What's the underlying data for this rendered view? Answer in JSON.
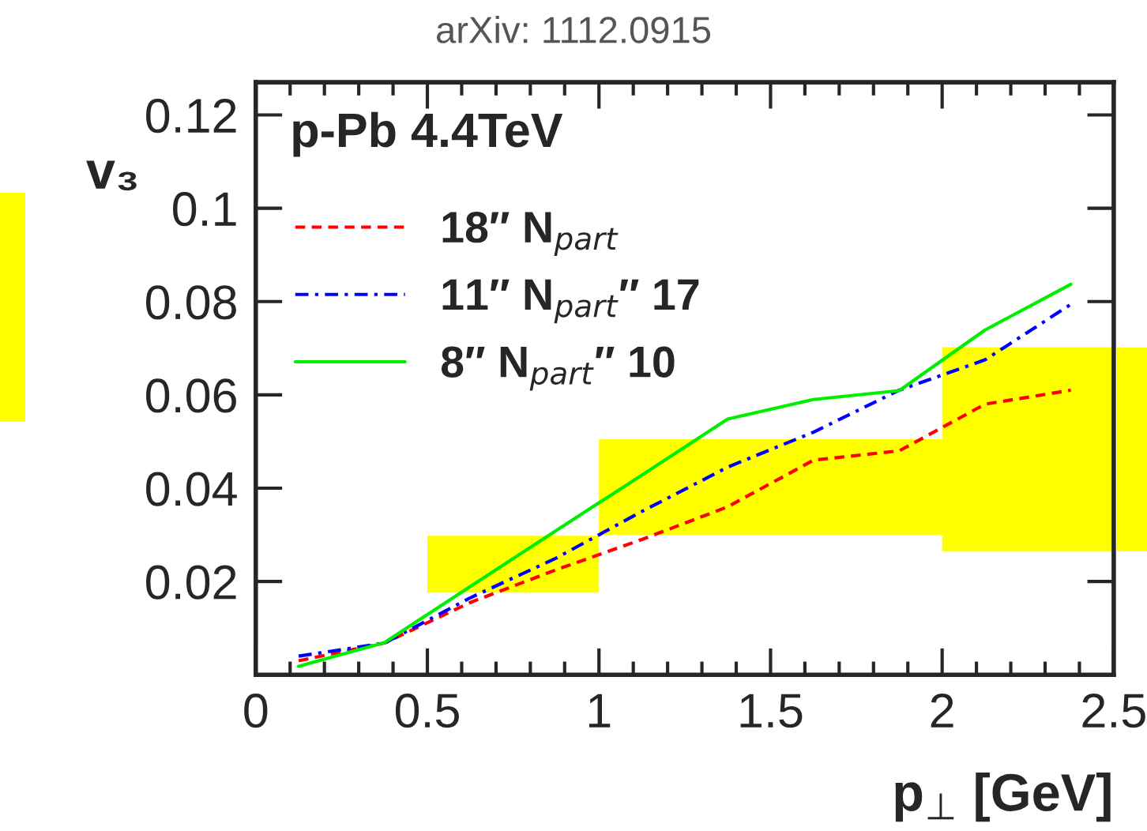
{
  "chart_data": {
    "type": "line",
    "title": "p-Pb 4.4TeV",
    "xlabel": "p$_{⊥}$ [GeV]",
    "ylabel": "v₃",
    "annotations": [
      "arXiv: 1112.0915"
    ],
    "xlim": [
      0,
      2.5
    ],
    "ylim": [
      0,
      0.127
    ],
    "xticks": [
      0,
      0.5,
      1,
      1.5,
      2,
      2.5
    ],
    "yticks": [
      0.02,
      0.04,
      0.06,
      0.08,
      0.1,
      0.12
    ],
    "legend": "top left",
    "grid": false,
    "marker": "none",
    "series": [
      {
        "type": "area",
        "color": "#ffff00",
        "x": [
          0.5,
          1.0,
          1.0,
          2.0,
          2.0,
          2.5
        ],
        "lower": [
          0.0176,
          0.0176,
          0.03,
          0.03,
          0.0264,
          0.0264
        ],
        "upper": [
          0.0298,
          0.0298,
          0.0505,
          0.0505,
          0.0702,
          0.0702
        ],
        "values": [
          null,
          null,
          null,
          null,
          null,
          null
        ]
      },
      {
        "name": "18″ N$_{part}$",
        "color": "#ff0000",
        "line_style": "dashed",
        "x": [
          0.125,
          0.375,
          0.625,
          0.875,
          1.125,
          1.375,
          1.625,
          1.875,
          2.125,
          2.375
        ],
        "values": [
          0.003,
          0.0068,
          0.0155,
          0.0225,
          0.029,
          0.036,
          0.046,
          0.048,
          0.058,
          0.061
        ]
      },
      {
        "name": "11″ N$_{part}$″ 17",
        "color": "#0000ff",
        "line_style": "dashdot",
        "x": [
          0.125,
          0.375,
          0.625,
          0.875,
          1.125,
          1.375,
          1.625,
          1.875,
          2.125,
          2.375
        ],
        "values": [
          0.004,
          0.0068,
          0.0165,
          0.025,
          0.035,
          0.0445,
          0.052,
          0.061,
          0.0675,
          0.0794
        ]
      },
      {
        "name": "8″ N$_{part}$″ 10",
        "color": "#00ee00",
        "line_style": "solid",
        "x": [
          0.125,
          0.375,
          0.625,
          0.875,
          1.125,
          1.375,
          1.625,
          1.875,
          2.125,
          2.375
        ],
        "values": [
          0.0018,
          0.0069,
          0.0189,
          0.0309,
          0.0428,
          0.0548,
          0.059,
          0.0609,
          0.0739,
          0.0837
        ]
      }
    ]
  }
}
